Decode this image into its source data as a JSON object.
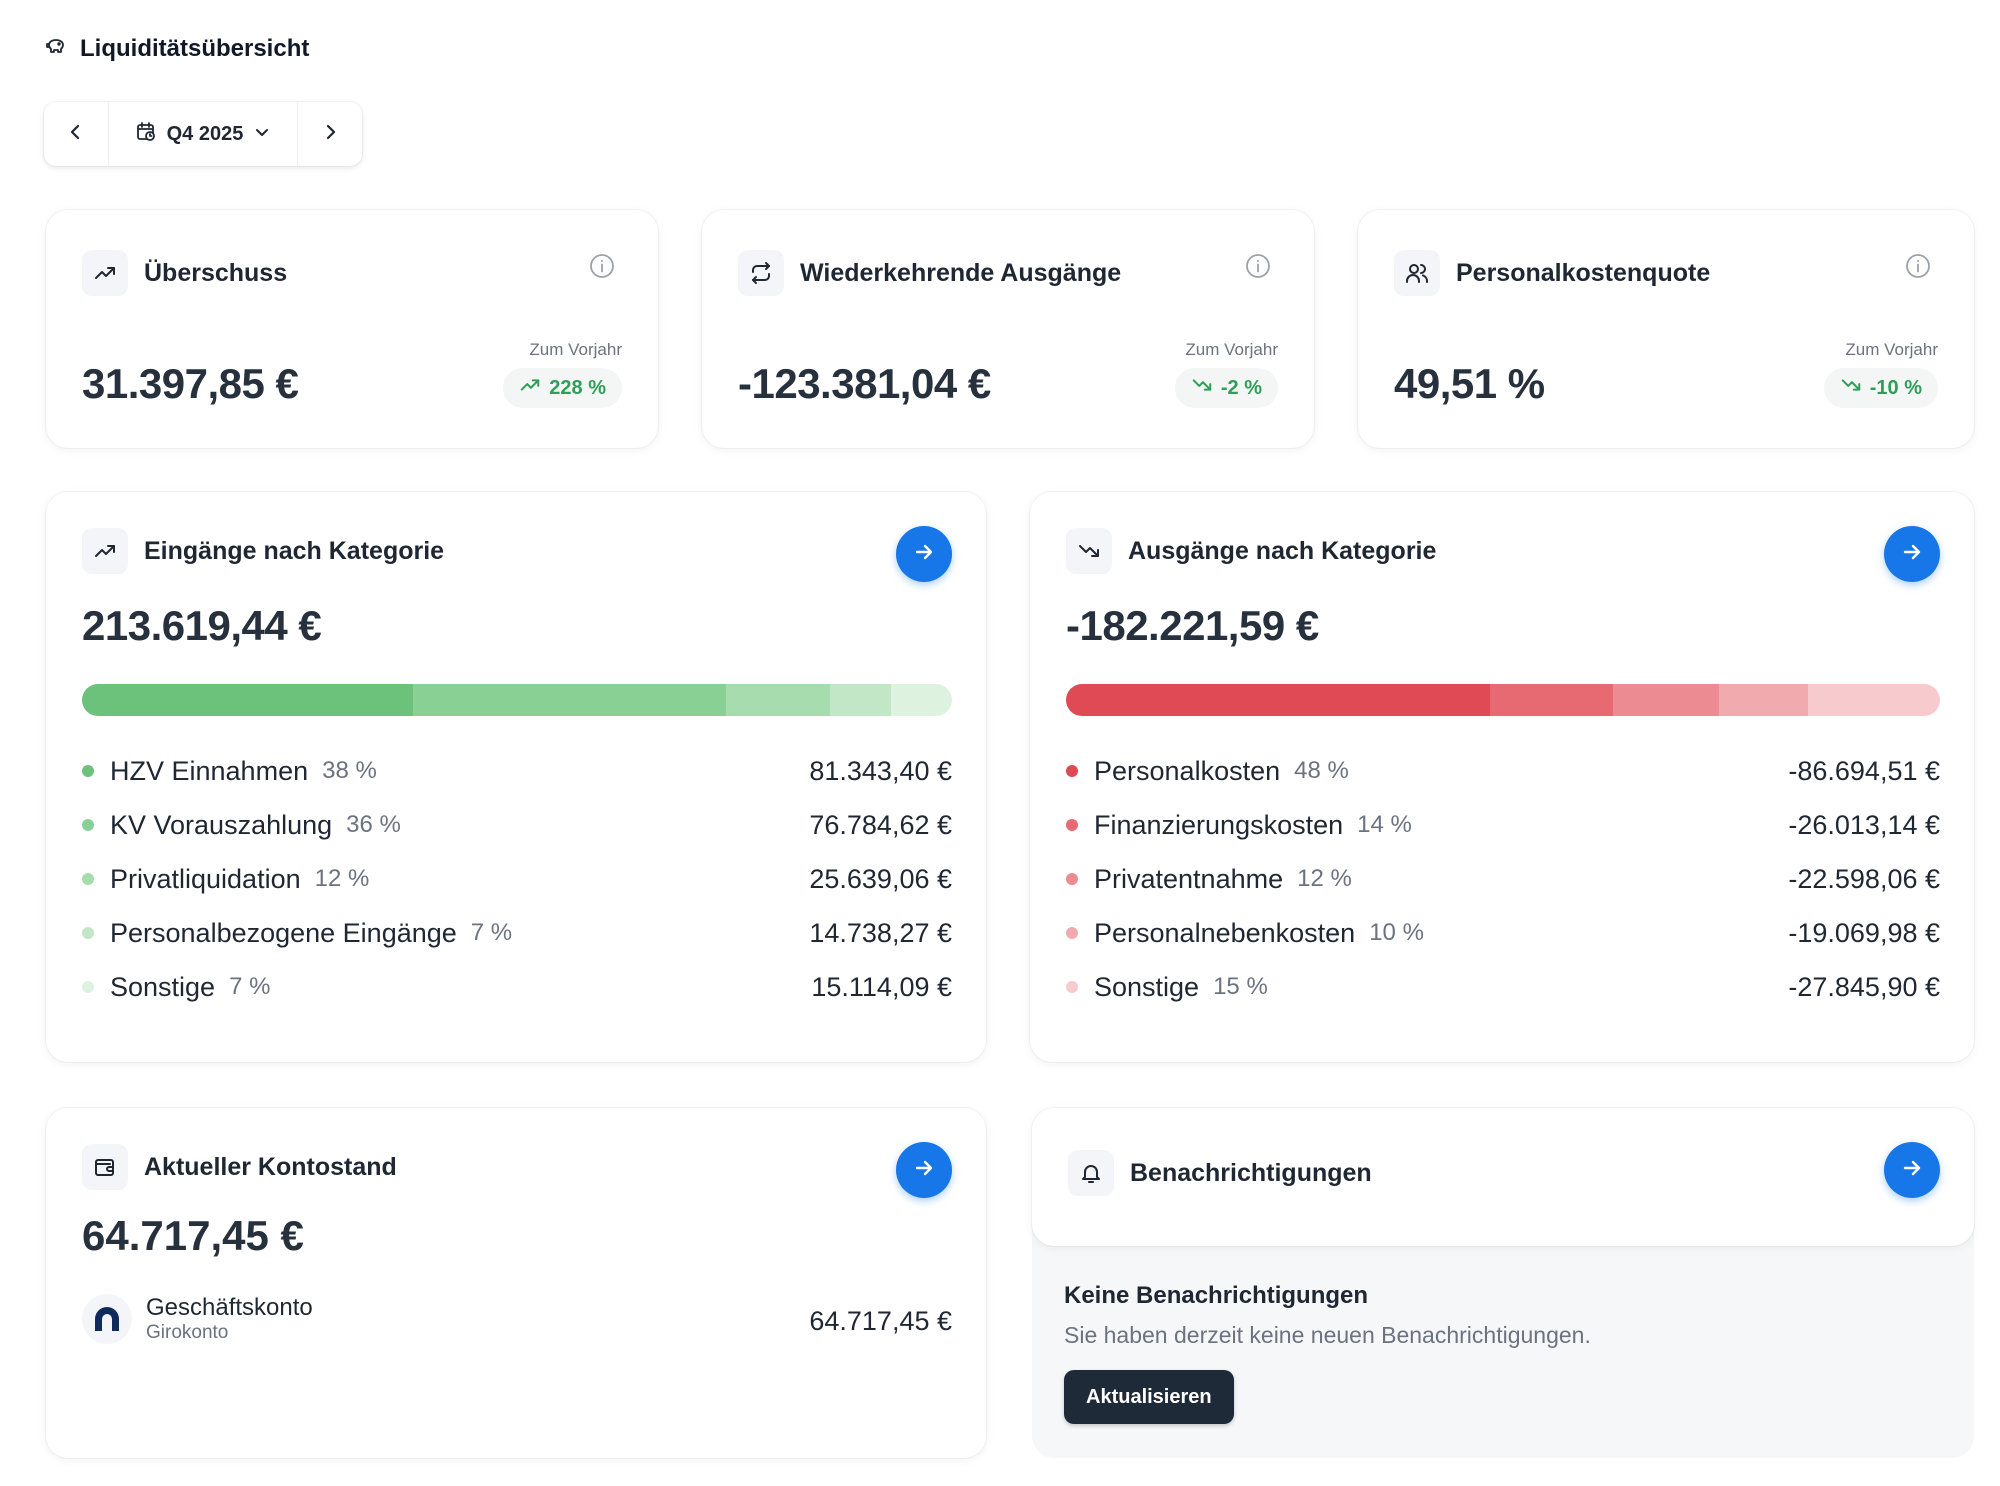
{
  "page": {
    "title": "Liquiditätsübersicht"
  },
  "period": {
    "label": "Q4 2025"
  },
  "kpis": [
    {
      "title": "Überschuss",
      "value": "31.397,85 €",
      "compare_label": "Zum Vorjahr",
      "change": "228 %",
      "trend": "up",
      "icon": "trending-up-icon"
    },
    {
      "title": "Wiederkehrende Ausgänge",
      "value": "-123.381,04 €",
      "compare_label": "Zum Vorjahr",
      "change": "-2 %",
      "trend": "down",
      "icon": "repeat-icon"
    },
    {
      "title": "Personalkostenquote",
      "value": "49,51 %",
      "compare_label": "Zum Vorjahr",
      "change": "-10 %",
      "trend": "down",
      "icon": "users-icon"
    }
  ],
  "income": {
    "title": "Eingänge nach Kategorie",
    "total": "213.619,44 €",
    "categories": [
      {
        "name": "HZV Einnahmen",
        "pct": "38 %",
        "share": 38,
        "amount": "81.343,40 €",
        "color": "#6cc17b"
      },
      {
        "name": "KV Vorauszahlung",
        "pct": "36 %",
        "share": 36,
        "amount": "76.784,62 €",
        "color": "#89d095"
      },
      {
        "name": "Privatliquidation",
        "pct": "12 %",
        "share": 12,
        "amount": "25.639,06 €",
        "color": "#a6dcae"
      },
      {
        "name": "Personalbezogene Eingänge",
        "pct": "7 %",
        "share": 7,
        "amount": "14.738,27 €",
        "color": "#c2e7c7"
      },
      {
        "name": "Sonstige",
        "pct": "7 %",
        "share": 7,
        "amount": "15.114,09 €",
        "color": "#def2e0"
      }
    ]
  },
  "expenses": {
    "title": "Ausgänge nach Kategorie",
    "total": "-182.221,59 €",
    "categories": [
      {
        "name": "Personalkosten",
        "pct": "48 %",
        "share": 48,
        "amount": "-86.694,51 €",
        "color": "#e04a55"
      },
      {
        "name": "Finanzierungskosten",
        "pct": "14 %",
        "share": 14,
        "amount": "-26.013,14 €",
        "color": "#e76a72"
      },
      {
        "name": "Privatentnahme",
        "pct": "12 %",
        "share": 12,
        "amount": "-22.598,06 €",
        "color": "#ec8b91"
      },
      {
        "name": "Personalnebenkosten",
        "pct": "10 %",
        "share": 10,
        "amount": "-19.069,98 €",
        "color": "#f1abaf"
      },
      {
        "name": "Sonstige",
        "pct": "15 %",
        "share": 15,
        "amount": "-27.845,90 €",
        "color": "#f7cbcd"
      }
    ]
  },
  "account": {
    "title": "Aktueller Kontostand",
    "total": "64.717,45 €",
    "name": "Geschäftskonto",
    "type": "Girokonto",
    "amount": "64.717,45 €"
  },
  "notifications": {
    "title": "Benachrichtigungen",
    "empty_title": "Keine Benachrichtigungen",
    "empty_text": "Sie haben derzeit keine neuen Benachrichtigungen.",
    "refresh_label": "Aktualisieren"
  },
  "colors": {
    "accent": "#1877e8",
    "positive": "#2f9e58",
    "dark_button": "#1e2a38"
  }
}
